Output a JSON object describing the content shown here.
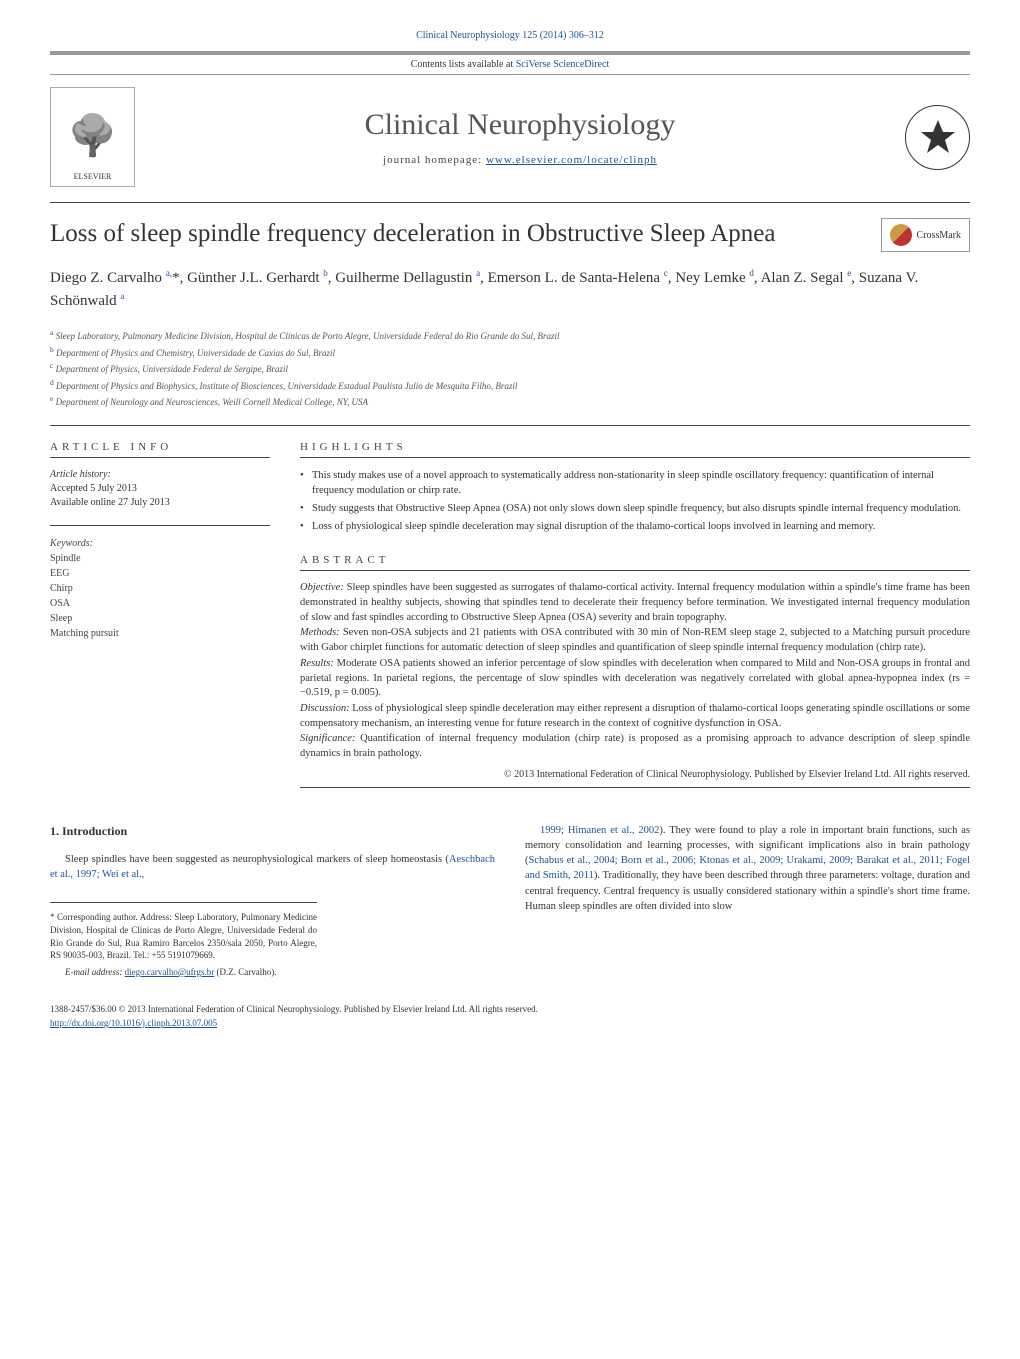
{
  "header": {
    "doc_link": "Clinical Neurophysiology 125 (2014) 306–312",
    "contents_text": "Contents lists available at",
    "contents_link": "SciVerse ScienceDirect",
    "journal_title": "Clinical Neurophysiology",
    "homepage_label": "journal homepage:",
    "homepage_url": "www.elsevier.com/locate/clinph",
    "publisher": "ELSEVIER",
    "crossmark": "CrossMark"
  },
  "article": {
    "title": "Loss of sleep spindle frequency deceleration in Obstructive Sleep Apnea",
    "authors_html": "Diego Z. Carvalho <sup>a,</sup>*, Günther J.L. Gerhardt <sup>b</sup>, Guilherme Dellagustin <sup>a</sup>, Emerson L. de Santa-Helena <sup>c</sup>, Ney Lemke <sup>d</sup>, Alan Z. Segal <sup>e</sup>, Suzana V. Schönwald <sup>a</sup>",
    "affiliations": [
      {
        "sup": "a",
        "text": "Sleep Laboratory, Pulmonary Medicine Division, Hospital de Clínicas de Porto Alegre, Universidade Federal do Rio Grande do Sul, Brazil"
      },
      {
        "sup": "b",
        "text": "Department of Physics and Chemistry, Universidade de Caxias do Sul, Brazil"
      },
      {
        "sup": "c",
        "text": "Department of Physics, Universidade Federal de Sergipe, Brazil"
      },
      {
        "sup": "d",
        "text": "Department of Physics and Biophysics, Institute of Biosciences, Universidade Estadual Paulista Julio de Mesquita Filho, Brazil"
      },
      {
        "sup": "e",
        "text": "Department of Neurology and Neurosciences, Weill Cornell Medical College, NY, USA"
      }
    ]
  },
  "article_info": {
    "heading": "ARTICLE INFO",
    "history_label": "Article history:",
    "accepted": "Accepted 5 July 2013",
    "available": "Available online 27 July 2013",
    "keywords_label": "Keywords:",
    "keywords": [
      "Spindle",
      "EEG",
      "Chirp",
      "OSA",
      "Sleep",
      "Matching pursuit"
    ]
  },
  "highlights": {
    "heading": "HIGHLIGHTS",
    "items": [
      "This study makes use of a novel approach to systematically address non-stationarity in sleep spindle oscillatory frequency: quantification of internal frequency modulation or chirp rate.",
      "Study suggests that Obstructive Sleep Apnea (OSA) not only slows down sleep spindle frequency, but also disrupts spindle internal frequency modulation.",
      "Loss of physiological sleep spindle deceleration may signal disruption of the thalamo-cortical loops involved in learning and memory."
    ]
  },
  "abstract": {
    "heading": "ABSTRACT",
    "sections": [
      {
        "label": "Objective:",
        "text": "Sleep spindles have been suggested as surrogates of thalamo-cortical activity. Internal frequency modulation within a spindle's time frame has been demonstrated in healthy subjects, showing that spindles tend to decelerate their frequency before termination. We investigated internal frequency modulation of slow and fast spindles according to Obstructive Sleep Apnea (OSA) severity and brain topography."
      },
      {
        "label": "Methods:",
        "text": "Seven non-OSA subjects and 21 patients with OSA contributed with 30 min of Non-REM sleep stage 2, subjected to a Matching pursuit procedure with Gabor chirplet functions for automatic detection of sleep spindles and quantification of sleep spindle internal frequency modulation (chirp rate)."
      },
      {
        "label": "Results:",
        "text": "Moderate OSA patients showed an inferior percentage of slow spindles with deceleration when compared to Mild and Non-OSA groups in frontal and parietal regions. In parietal regions, the percentage of slow spindles with deceleration was negatively correlated with global apnea-hypopnea index (rs = −0.519, p = 0.005)."
      },
      {
        "label": "Discussion:",
        "text": "Loss of physiological sleep spindle deceleration may either represent a disruption of thalamo-cortical loops generating spindle oscillations or some compensatory mechanism, an interesting venue for future research in the context of cognitive dysfunction in OSA."
      },
      {
        "label": "Significance:",
        "text": "Quantification of internal frequency modulation (chirp rate) is proposed as a promising approach to advance description of sleep spindle dynamics in brain pathology."
      }
    ],
    "copyright": "© 2013 International Federation of Clinical Neurophysiology. Published by Elsevier Ireland Ltd. All rights reserved."
  },
  "intro": {
    "heading": "1. Introduction",
    "col1": "Sleep spindles have been suggested as neurophysiological markers of sleep homeostasis (<span class='ref'>Aeschbach et al., 1997; Wei et al.,</span>",
    "col2": "<span class='ref'>1999; Himanen et al., 2002</span>). They were found to play a role in important brain functions, such as memory consolidation and learning processes, with significant implications also in brain pathology (<span class='ref'>Schabus et al., 2004; Born et al., 2006; Ktonas et al., 2009; Urakami, 2009; Barakat et al., 2011; Fogel and Smith, 2011</span>). Traditionally, they have been described through three parameters: voltage, duration and central frequency. Central frequency is usually considered stationary within a spindle's short time frame. Human sleep spindles are often divided into slow"
  },
  "footnote": {
    "corr": "* Corresponding author. Address: Sleep Laboratory, Pulmonary Medicine Division, Hospital de Clínicas de Porto Alegre, Universidade Federal do Rio Grande do Sul, Rua Ramiro Barcelos 2350/sala 2050, Porto Alegre, RS 90035-003, Brazil. Tel.: +55 5191079669.",
    "email_label": "E-mail address:",
    "email": "diego.carvalho@ufrgs.br",
    "email_suffix": "(D.Z. Carvalho)."
  },
  "footer": {
    "issn": "1388-2457/$36.00 © 2013 International Federation of Clinical Neurophysiology. Published by Elsevier Ireland Ltd. All rights reserved.",
    "doi": "http://dx.doi.org/10.1016/j.clinph.2013.07.005"
  },
  "colors": {
    "link": "#1a5490",
    "text": "#333333",
    "muted": "#555555",
    "border": "#444444"
  }
}
